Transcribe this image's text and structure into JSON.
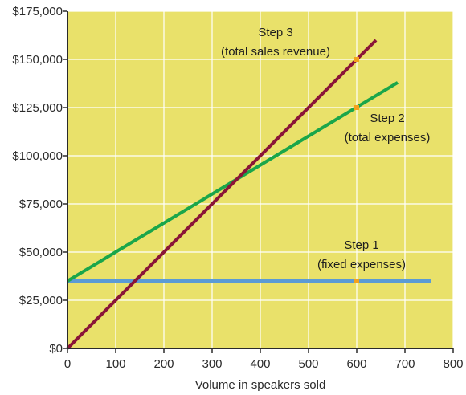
{
  "chart_data": {
    "type": "line",
    "xlabel": "Volume in speakers sold",
    "ylabel": "",
    "xlim": [
      0,
      800
    ],
    "ylim": [
      0,
      175000
    ],
    "x_ticks": [
      0,
      100,
      200,
      300,
      400,
      500,
      600,
      700,
      800
    ],
    "y_ticks": [
      0,
      25000,
      50000,
      75000,
      100000,
      125000,
      150000,
      175000
    ],
    "y_tick_labels": [
      "$0",
      "$25,000",
      "$50,000",
      "$75,000",
      "$100,000",
      "$125,000",
      "$150,000",
      "$175,000"
    ],
    "grid": true,
    "colors": {
      "plot_background": "#e9e16a",
      "grid": "#ffffff",
      "axis": "#2a2a2a",
      "marker": "#f4a21c"
    },
    "series": [
      {
        "key": "fixed",
        "color": "#5b9bd5",
        "points": [
          [
            0,
            35000
          ],
          [
            755,
            35000
          ]
        ]
      },
      {
        "key": "expenses",
        "color": "#1aa64a",
        "points": [
          [
            0,
            35000
          ],
          [
            685,
            138000
          ]
        ]
      },
      {
        "key": "revenue",
        "color": "#8a1538",
        "points": [
          [
            0,
            0
          ],
          [
            640,
            160000
          ]
        ]
      }
    ],
    "markers": [
      {
        "x": 600,
        "y": 35000
      },
      {
        "x": 600,
        "y": 125000
      },
      {
        "x": 600,
        "y": 150000
      }
    ],
    "annotations": [
      {
        "key": "step1",
        "lines": [
          "Step 1",
          "(fixed expenses)"
        ]
      },
      {
        "key": "step2",
        "lines": [
          "Step 2",
          "(total expenses)"
        ]
      },
      {
        "key": "step3",
        "lines": [
          "Step 3",
          "(total sales revenue)"
        ]
      }
    ]
  }
}
